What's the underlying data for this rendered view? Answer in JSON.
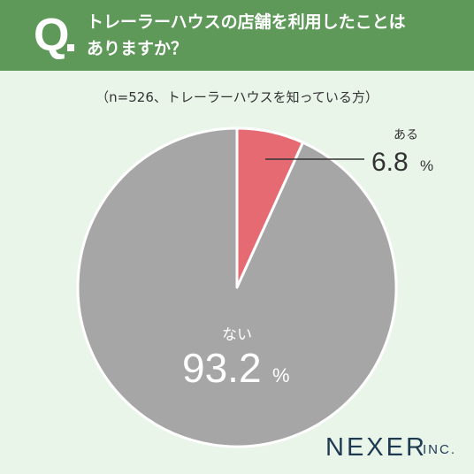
{
  "question": {
    "mark": "Q",
    "line1": "トレーラーハウスの店舗を利用したことは",
    "line2": "ありますか？"
  },
  "subtitle": "（n=526、トレーラーハウスを知っている方）",
  "chart_data": {
    "type": "pie",
    "slices": [
      {
        "label": "ある",
        "value": 6.8,
        "value_text": "6.8",
        "unit": "%",
        "color": "#e66a72"
      },
      {
        "label": "ない",
        "value": 93.2,
        "value_text": "93.2",
        "unit": "%",
        "color": "#a6a6a6"
      }
    ],
    "start": "12 o'clock",
    "direction": "clockwise"
  },
  "logo": {
    "main": "NEXER",
    "suffix": "INC."
  },
  "colors": {
    "header": "#5e995a",
    "background": "#eaf5ea",
    "slice_border": "#ffffff",
    "leader_line": "#333333"
  }
}
